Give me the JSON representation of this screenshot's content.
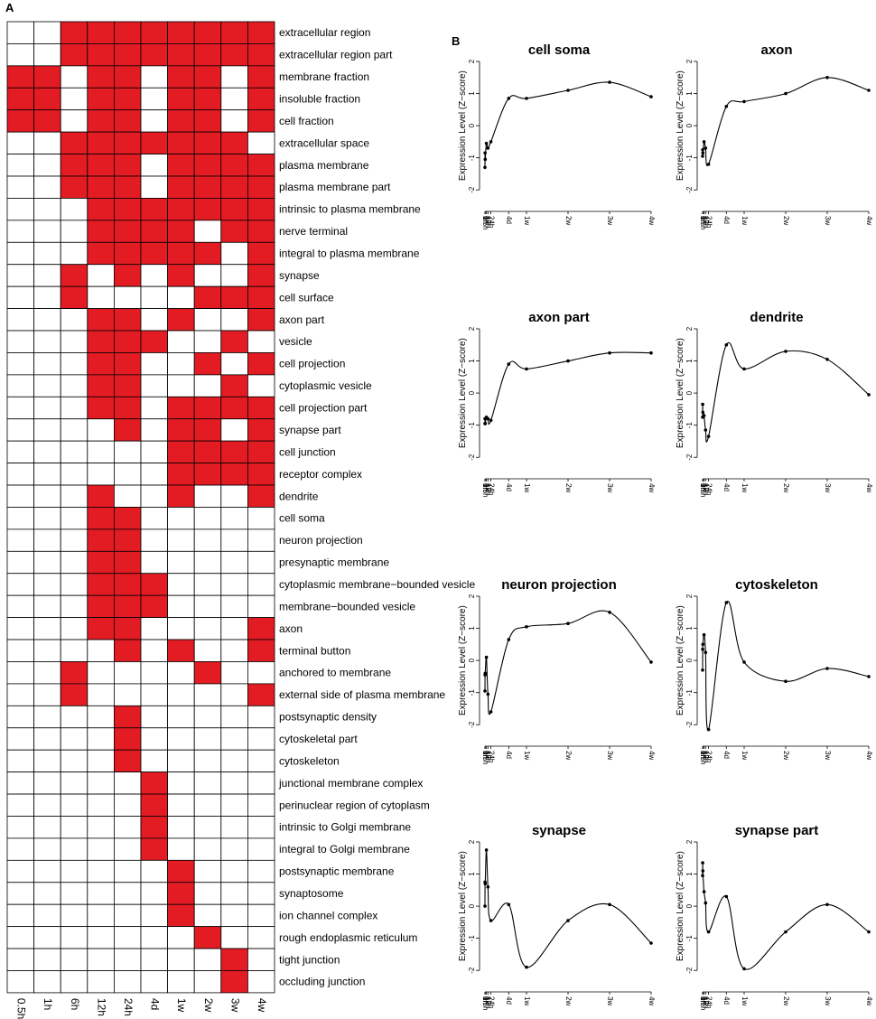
{
  "panel_a_label": "A",
  "panel_b_label": "B",
  "colors": {
    "on": "#e31c24",
    "off": "#ffffff",
    "grid": "#000000",
    "curve": "#000000"
  },
  "chart_data": [
    {
      "type": "heatmap",
      "title": "",
      "columns": [
        "0.5h",
        "1h",
        "6h",
        "12h",
        "24h",
        "4d",
        "1w",
        "2w",
        "3w",
        "4w"
      ],
      "rows": [
        "extracellular region",
        "extracellular region part",
        "membrane fraction",
        "insoluble fraction",
        "cell fraction",
        "extracellular space",
        "plasma membrane",
        "plasma membrane part",
        "intrinsic to plasma membrane",
        "nerve terminal",
        "integral to plasma membrane",
        "synapse",
        "cell surface",
        "axon part",
        "vesicle",
        "cell projection",
        "cytoplasmic vesicle",
        "cell projection part",
        "synapse part",
        "cell junction",
        "receptor complex",
        "dendrite",
        "cell soma",
        "neuron projection",
        "presynaptic membrane",
        "cytoplasmic membrane−bounded vesicle",
        "membrane−bounded vesicle",
        "axon",
        "terminal button",
        "anchored to membrane",
        "external side of plasma membrane",
        "postsynaptic density",
        "cytoskeletal part",
        "cytoskeleton",
        "junctional membrane complex",
        "perinuclear region of cytoplasm",
        "intrinsic to Golgi membrane",
        "integral to Golgi membrane",
        "postsynaptic membrane",
        "synaptosome",
        "ion channel complex",
        "rough endoplasmic reticulum",
        "tight junction",
        "occluding junction"
      ],
      "values": [
        [
          0,
          0,
          1,
          1,
          1,
          1,
          1,
          1,
          1,
          1
        ],
        [
          0,
          0,
          1,
          1,
          1,
          1,
          1,
          1,
          1,
          1
        ],
        [
          1,
          1,
          0,
          1,
          1,
          0,
          1,
          1,
          0,
          1
        ],
        [
          1,
          1,
          0,
          1,
          1,
          0,
          1,
          1,
          0,
          1
        ],
        [
          1,
          1,
          0,
          1,
          1,
          0,
          1,
          1,
          0,
          1
        ],
        [
          0,
          0,
          1,
          1,
          1,
          1,
          1,
          1,
          1,
          0
        ],
        [
          0,
          0,
          1,
          1,
          1,
          0,
          1,
          1,
          1,
          1
        ],
        [
          0,
          0,
          1,
          1,
          1,
          0,
          1,
          1,
          1,
          1
        ],
        [
          0,
          0,
          0,
          1,
          1,
          1,
          1,
          1,
          1,
          1
        ],
        [
          0,
          0,
          0,
          1,
          1,
          1,
          1,
          0,
          1,
          1
        ],
        [
          0,
          0,
          0,
          1,
          1,
          1,
          1,
          1,
          0,
          1
        ],
        [
          0,
          0,
          1,
          0,
          1,
          0,
          1,
          0,
          0,
          1
        ],
        [
          0,
          0,
          1,
          0,
          0,
          0,
          0,
          1,
          1,
          1
        ],
        [
          0,
          0,
          0,
          1,
          1,
          0,
          1,
          0,
          0,
          1
        ],
        [
          0,
          0,
          0,
          1,
          1,
          1,
          0,
          0,
          1,
          0
        ],
        [
          0,
          0,
          0,
          1,
          1,
          0,
          0,
          1,
          0,
          1
        ],
        [
          0,
          0,
          0,
          1,
          1,
          0,
          0,
          0,
          1,
          0
        ],
        [
          0,
          0,
          0,
          1,
          1,
          0,
          1,
          1,
          1,
          1
        ],
        [
          0,
          0,
          0,
          0,
          1,
          0,
          1,
          1,
          0,
          1
        ],
        [
          0,
          0,
          0,
          0,
          0,
          0,
          1,
          1,
          1,
          1
        ],
        [
          0,
          0,
          0,
          0,
          0,
          0,
          1,
          1,
          1,
          1
        ],
        [
          0,
          0,
          0,
          1,
          0,
          0,
          1,
          0,
          0,
          1
        ],
        [
          0,
          0,
          0,
          1,
          1,
          0,
          0,
          0,
          0,
          0
        ],
        [
          0,
          0,
          0,
          1,
          1,
          0,
          0,
          0,
          0,
          0
        ],
        [
          0,
          0,
          0,
          1,
          1,
          0,
          0,
          0,
          0,
          0
        ],
        [
          0,
          0,
          0,
          1,
          1,
          1,
          0,
          0,
          0,
          0
        ],
        [
          0,
          0,
          0,
          1,
          1,
          1,
          0,
          0,
          0,
          0
        ],
        [
          0,
          0,
          0,
          1,
          1,
          0,
          0,
          0,
          0,
          1
        ],
        [
          0,
          0,
          0,
          0,
          1,
          0,
          1,
          0,
          0,
          1
        ],
        [
          0,
          0,
          1,
          0,
          0,
          0,
          0,
          1,
          0,
          0
        ],
        [
          0,
          0,
          1,
          0,
          0,
          0,
          0,
          0,
          0,
          1
        ],
        [
          0,
          0,
          0,
          0,
          1,
          0,
          0,
          0,
          0,
          0
        ],
        [
          0,
          0,
          0,
          0,
          1,
          0,
          0,
          0,
          0,
          0
        ],
        [
          0,
          0,
          0,
          0,
          1,
          0,
          0,
          0,
          0,
          0
        ],
        [
          0,
          0,
          0,
          0,
          0,
          1,
          0,
          0,
          0,
          0
        ],
        [
          0,
          0,
          0,
          0,
          0,
          1,
          0,
          0,
          0,
          0
        ],
        [
          0,
          0,
          0,
          0,
          0,
          1,
          0,
          0,
          0,
          0
        ],
        [
          0,
          0,
          0,
          0,
          0,
          1,
          0,
          0,
          0,
          0
        ],
        [
          0,
          0,
          0,
          0,
          0,
          0,
          1,
          0,
          0,
          0
        ],
        [
          0,
          0,
          0,
          0,
          0,
          0,
          1,
          0,
          0,
          0
        ],
        [
          0,
          0,
          0,
          0,
          0,
          0,
          1,
          0,
          0,
          0
        ],
        [
          0,
          0,
          0,
          0,
          0,
          0,
          0,
          1,
          0,
          0
        ],
        [
          0,
          0,
          0,
          0,
          0,
          0,
          0,
          0,
          1,
          0
        ],
        [
          0,
          0,
          0,
          0,
          0,
          0,
          0,
          0,
          1,
          0
        ]
      ]
    },
    {
      "type": "line",
      "title": "cell soma",
      "ylabel": "Expression Level (Z−score)",
      "xlabel": "",
      "ylim": [
        -2.5,
        2
      ],
      "yticks": [
        -2,
        -1,
        0,
        1,
        2
      ],
      "x_tick_labels": [
        "0h",
        "0.5h",
        "1h",
        "6h",
        "12h",
        "24h",
        "4d",
        "1w",
        "2w",
        "3w",
        "4w"
      ],
      "x_days": [
        0,
        0.0208,
        0.0417,
        0.25,
        0.5,
        1,
        4,
        7,
        14,
        21,
        28
      ],
      "y": [
        -1.3,
        -0.85,
        -1.05,
        -0.55,
        -0.7,
        -0.5,
        0.85,
        0.85,
        1.1,
        1.35,
        0.9
      ]
    },
    {
      "type": "line",
      "title": "axon",
      "ylabel": "Expression Level (Z−score)",
      "xlabel": "",
      "ylim": [
        -2.5,
        2
      ],
      "yticks": [
        -2,
        -1,
        0,
        1,
        2
      ],
      "x_tick_labels": [
        "0h",
        "0.5h",
        "1h",
        "6h",
        "12h",
        "24h",
        "4d",
        "1w",
        "2w",
        "3w",
        "4w"
      ],
      "x_days": [
        0,
        0.0208,
        0.0417,
        0.25,
        0.5,
        1,
        4,
        7,
        14,
        21,
        28
      ],
      "y": [
        -0.95,
        -0.75,
        -0.85,
        -0.5,
        -0.7,
        -1.2,
        0.6,
        0.75,
        1.0,
        1.5,
        1.1
      ]
    },
    {
      "type": "line",
      "title": "axon part",
      "ylabel": "Expression Level (Z−score)",
      "xlabel": "",
      "ylim": [
        -2.5,
        2
      ],
      "yticks": [
        -2,
        -1,
        0,
        1,
        2
      ],
      "x_tick_labels": [
        "0h",
        "0.5h",
        "1h",
        "6h",
        "12h",
        "24h",
        "4d",
        "1w",
        "2w",
        "3w",
        "4w"
      ],
      "x_days": [
        0,
        0.0208,
        0.0417,
        0.25,
        0.5,
        1,
        4,
        7,
        14,
        21,
        28
      ],
      "y": [
        -0.95,
        -0.8,
        -0.95,
        -0.75,
        -0.8,
        -0.85,
        0.9,
        0.75,
        1.0,
        1.25,
        1.25
      ]
    },
    {
      "type": "line",
      "title": "dendrite",
      "ylabel": "Expression Level (Z−score)",
      "xlabel": "",
      "ylim": [
        -2.5,
        2
      ],
      "yticks": [
        -2,
        -1,
        0,
        1,
        2
      ],
      "x_tick_labels": [
        "0h",
        "0.5h",
        "1h",
        "6h",
        "12h",
        "24h",
        "4d",
        "1w",
        "2w",
        "3w",
        "4w"
      ],
      "x_days": [
        0,
        0.0208,
        0.0417,
        0.25,
        0.5,
        1,
        4,
        7,
        14,
        21,
        28
      ],
      "y": [
        -0.75,
        -0.35,
        -0.6,
        -0.7,
        -1.15,
        -1.35,
        1.5,
        0.75,
        1.3,
        1.05,
        -0.05
      ]
    },
    {
      "type": "line",
      "title": "neuron projection",
      "ylabel": "Expression Level (Z−score)",
      "xlabel": "",
      "ylim": [
        -2.5,
        2
      ],
      "yticks": [
        -2,
        -1,
        0,
        1,
        2
      ],
      "x_tick_labels": [
        "0h",
        "0.5h",
        "1h",
        "6h",
        "12h",
        "24h",
        "4d",
        "1w",
        "2w",
        "3w",
        "4w"
      ],
      "x_days": [
        0,
        0.0208,
        0.0417,
        0.25,
        0.5,
        1,
        4,
        7,
        14,
        21,
        28
      ],
      "y": [
        -0.95,
        -0.45,
        -0.4,
        0.1,
        -1.05,
        -1.6,
        0.65,
        1.05,
        1.15,
        1.5,
        -0.05
      ]
    },
    {
      "type": "line",
      "title": "cytoskeleton",
      "ylabel": "Expression Level (Z−score)",
      "xlabel": "",
      "ylim": [
        -2.5,
        2
      ],
      "yticks": [
        -2,
        -1,
        0,
        1,
        2
      ],
      "x_tick_labels": [
        "0h",
        "0.5h",
        "1h",
        "6h",
        "12h",
        "24h",
        "4d",
        "1w",
        "2w",
        "3w",
        "4w"
      ],
      "x_days": [
        0,
        0.0208,
        0.0417,
        0.25,
        0.5,
        1,
        4,
        7,
        14,
        21,
        28
      ],
      "y": [
        -0.3,
        0.35,
        0.5,
        0.8,
        0.25,
        -2.15,
        1.8,
        -0.05,
        -0.65,
        -0.25,
        -0.5
      ]
    },
    {
      "type": "line",
      "title": "synapse",
      "ylabel": "Expression Level (Z−score)",
      "xlabel": "",
      "ylim": [
        -2.5,
        2
      ],
      "yticks": [
        -2,
        -1,
        0,
        1,
        2
      ],
      "x_tick_labels": [
        "0h",
        "0.5h",
        "1h",
        "6h",
        "12h",
        "24h",
        "4d",
        "1w",
        "2w",
        "3w",
        "4w"
      ],
      "x_days": [
        0,
        0.0208,
        0.0417,
        0.25,
        0.5,
        1,
        4,
        7,
        14,
        21,
        28
      ],
      "y": [
        0.0,
        0.75,
        0.7,
        1.75,
        0.6,
        -0.45,
        0.05,
        -1.9,
        -0.45,
        0.05,
        -1.15
      ]
    },
    {
      "type": "line",
      "title": "synapse part",
      "ylabel": "Expression Level (Z−score)",
      "xlabel": "",
      "ylim": [
        -2.5,
        2
      ],
      "yticks": [
        -2,
        -1,
        0,
        1,
        2
      ],
      "x_tick_labels": [
        "0h",
        "0.5h",
        "1h",
        "6h",
        "12h",
        "24h",
        "4d",
        "1w",
        "2w",
        "3w",
        "4w"
      ],
      "x_days": [
        0,
        0.0208,
        0.0417,
        0.25,
        0.5,
        1,
        4,
        7,
        14,
        21,
        28
      ],
      "y": [
        0.95,
        1.35,
        1.1,
        0.45,
        0.1,
        -0.8,
        0.3,
        -1.95,
        -0.8,
        0.05,
        -0.8
      ]
    }
  ]
}
